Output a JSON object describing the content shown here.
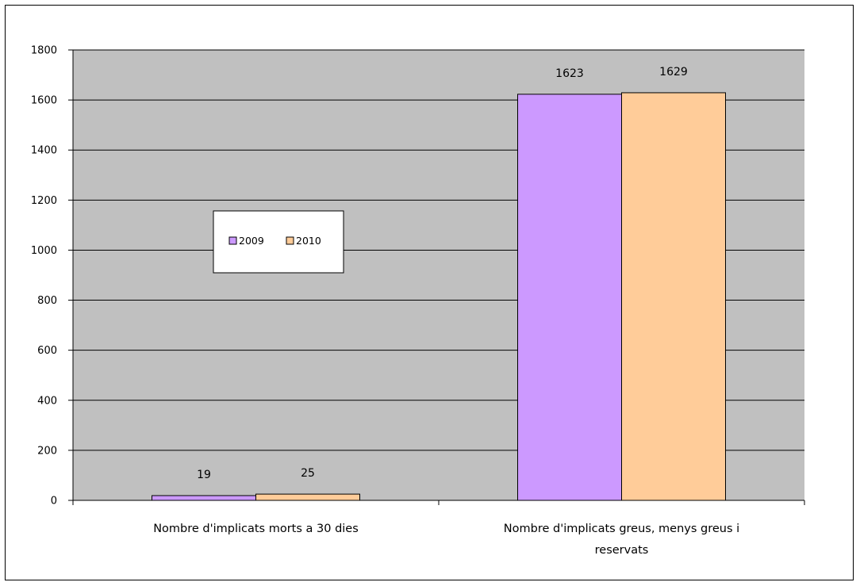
{
  "chart_data": {
    "type": "bar",
    "title": "",
    "xlabel": "",
    "ylabel": "",
    "ylim": [
      0,
      1800
    ],
    "yticks": [
      0,
      200,
      400,
      600,
      800,
      1000,
      1200,
      1400,
      1600,
      1800
    ],
    "grid": true,
    "legend_position": "left-center",
    "categories": [
      [
        "Nombre d'implicats morts a 30 dies"
      ],
      [
        "Nombre d'implicats greus, menys greus i",
        "reservats"
      ]
    ],
    "series": [
      {
        "name": "2009",
        "color": "#cc99ff",
        "values": [
          19,
          1623
        ]
      },
      {
        "name": "2010",
        "color": "#ffcc99",
        "values": [
          25,
          1629
        ]
      }
    ],
    "plot_background": "#c0c0c0"
  }
}
